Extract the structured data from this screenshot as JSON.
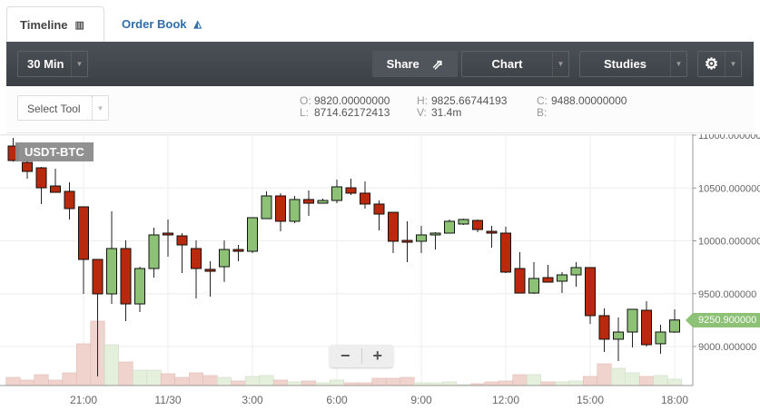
{
  "tabs": [
    {
      "label": "Timeline",
      "icon": "bar-chart-icon"
    },
    {
      "label": "Order Book",
      "icon": "area-chart-icon"
    }
  ],
  "toolbar": {
    "interval": "30 Min",
    "share": "Share",
    "chart": "Chart",
    "studies": "Studies",
    "settings_icon": "gear-icon"
  },
  "tool_select": {
    "value": "Select Tool"
  },
  "ohlc": {
    "O": "9820.00000000",
    "H": "9825.66744193",
    "C": "9488.00000000",
    "L": "8714.62172413",
    "V": "31.4m",
    "B": ""
  },
  "symbol": "USDT-BTC",
  "zoom": {
    "minus": "−",
    "plus": "+"
  },
  "colors": {
    "up": "#8cc176",
    "down": "#b8290d",
    "up_volume": "#e4efdc",
    "down_volume": "#f1d3ce"
  },
  "chart_data": {
    "type": "candlestick",
    "interval": "30 Min",
    "last_price": "9250.900000",
    "y_ticks": [
      "11000.000000",
      "10500.000000",
      "10000.000000",
      "9500.000000",
      "9000.000000"
    ],
    "y_tick_values": [
      11000,
      10500,
      10000,
      9500,
      9000
    ],
    "ylim": [
      8640,
      11010
    ],
    "x_ticks": [
      "21:00",
      "11/30",
      "3:00",
      "6:00",
      "9:00",
      "12:00",
      "15:00",
      "18:00"
    ],
    "x_tick_index": [
      5,
      11,
      17,
      23,
      29,
      35,
      41,
      47
    ],
    "grid": true,
    "candles": [
      [
        10897,
        10974,
        10750,
        10760
      ],
      [
        10742,
        10760,
        10588,
        10657
      ],
      [
        10691,
        10700,
        10348,
        10502
      ],
      [
        10519,
        10682,
        10459,
        10459
      ],
      [
        10468,
        10554,
        10202,
        10305
      ],
      [
        10322,
        10322,
        9498,
        9824
      ],
      [
        9824,
        9824,
        8717,
        9498
      ],
      [
        9498,
        10279,
        9403,
        9927
      ],
      [
        9927,
        10004,
        9240,
        9403
      ],
      [
        9403,
        9755,
        9326,
        9738
      ],
      [
        9738,
        10124,
        9652,
        10056
      ],
      [
        10073,
        10202,
        9850,
        10056
      ],
      [
        10047,
        10073,
        9695,
        9961
      ],
      [
        9927,
        10004,
        9455,
        9738
      ],
      [
        9730,
        9807,
        9472,
        9712
      ],
      [
        9755,
        10004,
        9610,
        9918
      ],
      [
        9918,
        9961,
        9807,
        9901
      ],
      [
        9901,
        10219,
        9884,
        10219
      ],
      [
        10210,
        10468,
        10210,
        10425
      ],
      [
        10425,
        10451,
        10090,
        10185
      ],
      [
        10185,
        10425,
        10167,
        10391
      ],
      [
        10391,
        10476,
        10236,
        10356
      ],
      [
        10356,
        10399,
        10356,
        10382
      ],
      [
        10382,
        10579,
        10356,
        10511
      ],
      [
        10502,
        10588,
        10434,
        10451
      ],
      [
        10451,
        10562,
        10305,
        10348
      ],
      [
        10348,
        10382,
        10099,
        10253
      ],
      [
        10270,
        10270,
        9884,
        9996
      ],
      [
        10004,
        10185,
        9798,
        9987
      ],
      [
        9996,
        10142,
        9884,
        10056
      ],
      [
        10056,
        10082,
        9918,
        10073
      ],
      [
        10073,
        10202,
        10073,
        10185
      ],
      [
        10159,
        10210,
        10150,
        10202
      ],
      [
        10193,
        10202,
        10082,
        10107
      ],
      [
        10090,
        10142,
        9936,
        10073
      ],
      [
        10073,
        10133,
        9695,
        9704
      ],
      [
        9738,
        9893,
        9506,
        9506
      ],
      [
        9506,
        9798,
        9498,
        9644
      ],
      [
        9652,
        9773,
        9609,
        9609
      ],
      [
        9618,
        9704,
        9506,
        9678
      ],
      [
        9678,
        9798,
        9566,
        9747
      ],
      [
        9747,
        9747,
        9215,
        9292
      ],
      [
        9292,
        9361,
        8949,
        9069
      ],
      [
        9069,
        9275,
        8863,
        9137
      ],
      [
        9137,
        9352,
        8991,
        9352
      ],
      [
        9343,
        9429,
        9000,
        9017
      ],
      [
        9026,
        9206,
        8931,
        9137
      ],
      [
        9137,
        9352,
        9129,
        9251
      ]
    ],
    "candle_fields": [
      "open",
      "high",
      "low",
      "close"
    ],
    "volume_relative": [
      9,
      6,
      12,
      6,
      14,
      46,
      71,
      45,
      26,
      17,
      17,
      13,
      9,
      14,
      11,
      9,
      5,
      10,
      11,
      6,
      4,
      5,
      3,
      6,
      3,
      3,
      8,
      8,
      9,
      3,
      3,
      4,
      1,
      2,
      4,
      5,
      12,
      12,
      4,
      4,
      5,
      10,
      24,
      19,
      14,
      10,
      11,
      7
    ]
  }
}
